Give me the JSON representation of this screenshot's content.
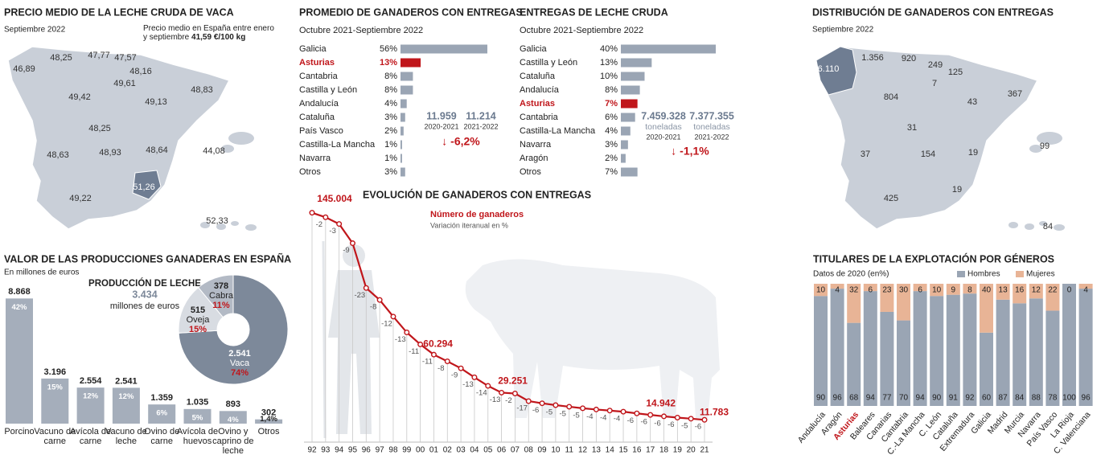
{
  "maps": [
    {
      "title": "PRECIO MEDIO DE LA LECHE CRUDA DE VACA",
      "subtitle": "Septiembre 2022",
      "note": "Precio medio en España entre enero y septiembre",
      "note_value": "41,59 €/100 kg",
      "labels": [
        "46,89",
        "48,25",
        "47,77",
        "47,57",
        "48,16",
        "49,61",
        "49,42",
        "49,13",
        "48,83",
        "48,25",
        "48,93",
        "48,63",
        "48,64",
        "44,08",
        "49,22",
        "51,26",
        "52,33"
      ]
    },
    {
      "title": "DISTRIBUCIÓN DE GANADEROS CON ENTREGAS",
      "subtitle": "Septiembre 2022",
      "labels": [
        "6.110",
        "1.356",
        "920",
        "249",
        "125",
        "7",
        "804",
        "43",
        "367",
        "31",
        "154",
        "19",
        "37",
        "19",
        "99",
        "425",
        "84"
      ]
    }
  ],
  "chart_data": [
    {
      "type": "hbar",
      "title": "PROMEDIO DE GANADEROS CON ENTREGAS",
      "subtitle": "Octubre 2021-Septiembre 2022",
      "categories": [
        "Galicia",
        "Asturias",
        "Cantabria",
        "Castilla y León",
        "Andalucía",
        "Cataluña",
        "País Vasco",
        "Castilla-La Mancha",
        "Navarra",
        "Otros"
      ],
      "values": [
        56,
        13,
        8,
        8,
        4,
        3,
        2,
        1,
        1,
        3
      ],
      "value_labels": [
        "56%",
        "13%",
        "8%",
        "8%",
        "4%",
        "3%",
        "2%",
        "1%",
        "1%",
        "3%"
      ],
      "color": "#9aa5b4",
      "highlight": "Asturias",
      "highlight_color": "#c0161b",
      "xlim": [
        0,
        56
      ],
      "comparison": {
        "items": [
          {
            "value": "11.959",
            "period": "2020-2021"
          },
          {
            "value": "11.214",
            "period": "2021-2022"
          }
        ],
        "change": "↓ -6,2%"
      }
    },
    {
      "type": "hbar",
      "title": "ENTREGAS DE LECHE CRUDA",
      "subtitle": "Octubre 2021-Septiembre 2022",
      "categories": [
        "Galicia",
        "Castilla y León",
        "Cataluña",
        "Andalucía",
        "Asturias",
        "Cantabria",
        "Castilla-La Mancha",
        "Navarra",
        "Aragón",
        "Otros"
      ],
      "values": [
        40,
        13,
        10,
        8,
        7,
        6,
        4,
        3,
        2,
        7
      ],
      "value_labels": [
        "40%",
        "13%",
        "10%",
        "8%",
        "7%",
        "6%",
        "4%",
        "3%",
        "2%",
        "7%"
      ],
      "color": "#9aa5b4",
      "highlight": "Asturias",
      "highlight_color": "#c0161b",
      "xlim": [
        0,
        40
      ],
      "comparison": {
        "items": [
          {
            "value": "7.459.328",
            "unit": "toneladas",
            "period": "2020-2021"
          },
          {
            "value": "7.377.355",
            "unit": "toneladas",
            "period": "2021-2022"
          }
        ],
        "change": "↓ -1,1%"
      }
    },
    {
      "type": "line",
      "title": "EVOLUCIÓN DE GANADEROS CON ENTREGAS",
      "change_label": "Variación iteranual en %",
      "categories": [
        "92",
        "93",
        "94",
        "95",
        "96",
        "97",
        "98",
        "99",
        "00",
        "01",
        "02",
        "03",
        "04",
        "05",
        "06",
        "07",
        "08",
        "09",
        "10",
        "11",
        "12",
        "13",
        "14",
        "15",
        "16",
        "17",
        "18",
        "19",
        "20",
        "21"
      ],
      "series": [
        {
          "name": "Número de ganaderos",
          "color": "#c0161b",
          "values": [
            145004,
            142100,
            137800,
            125400,
            96600,
            88900,
            78200,
            68000,
            60294,
            53700,
            49400,
            44900,
            39100,
            33600,
            29251,
            28700,
            23800,
            22400,
            21200,
            20200,
            19200,
            18400,
            17700,
            17000,
            15900,
            14942,
            14000,
            13200,
            12500,
            11783
          ],
          "value_labels": [
            "145.004",
            null,
            null,
            null,
            null,
            null,
            null,
            null,
            "60.294",
            null,
            null,
            null,
            null,
            null,
            "29.251",
            null,
            null,
            null,
            null,
            null,
            null,
            null,
            null,
            null,
            null,
            "14.942",
            null,
            null,
            null,
            "11.783"
          ]
        }
      ],
      "change_values": [
        null,
        -2,
        -3,
        -9,
        -23,
        -8,
        -12,
        -13,
        -11,
        -11,
        -8,
        -9,
        -13,
        -14,
        -13,
        -2,
        -17,
        -6,
        -5,
        -5,
        -5,
        -4,
        -4,
        -4,
        -6,
        -6,
        -6,
        -6,
        -5,
        -6
      ],
      "ylim": [
        0,
        150000
      ]
    },
    {
      "type": "bar",
      "title": "VALOR DE LAS PRODUCCIONES GANADERAS EN ESPAÑA",
      "subtitle": "En millones de euros",
      "categories": [
        "Porcino",
        "Vacuno de carne",
        "Avícola de carne",
        "Vacuno de leche",
        "Ovino de carne",
        "Avícola de huevos",
        "Ovino y caprino de leche",
        "Otros"
      ],
      "values": [
        8868,
        3196,
        2554,
        2541,
        1359,
        1035,
        893,
        302
      ],
      "value_labels": [
        "8.868",
        "3.196",
        "2.554",
        "2.541",
        "1.359",
        "1.035",
        "893",
        "302"
      ],
      "shares": [
        42,
        15,
        12,
        12,
        6,
        5,
        4,
        1.4
      ],
      "share_labels": [
        "42%",
        "15%",
        "12%",
        "12%",
        "6%",
        "5%",
        "4%",
        "1,4%"
      ],
      "color": "#a5aebb",
      "ylim": [
        0,
        9000
      ]
    },
    {
      "type": "donut",
      "title": "PRODUCCIÓN DE LECHE",
      "subtitle_value": "3.434",
      "subtitle": "millones de euros",
      "categories": [
        "Vaca",
        "Oveja",
        "Cabra"
      ],
      "values": [
        2541,
        515,
        378
      ],
      "value_labels": [
        "2.541",
        "515",
        "378"
      ],
      "shares": [
        74,
        15,
        11
      ],
      "share_labels": [
        "74%",
        "15%",
        "11%"
      ],
      "colors": [
        "#7d899a",
        "#d8dce2",
        "#b3bac5"
      ],
      "share_color": "#c0161b"
    },
    {
      "type": "stacked",
      "title": "TITULARES DE LA EXPLOTACIÓN POR GÉNEROS",
      "subtitle": "Datos de 2020 (en%)",
      "categories": [
        "Andalucía",
        "Aragón",
        "Asturias",
        "Baleares",
        "Canarias",
        "Cantabria",
        "C.-La Mancha",
        "C. León",
        "Cataluña",
        "Extremadura",
        "Galicia",
        "Madrid",
        "Murcia",
        "Navarra",
        "País Vasco",
        "La Rioja",
        "C. Valenciana"
      ],
      "series": [
        {
          "name": "Hombres",
          "color": "#9aa5b4",
          "values": [
            90,
            96,
            68,
            94,
            77,
            70,
            94,
            90,
            91,
            92,
            60,
            87,
            84,
            88,
            78,
            100,
            96
          ]
        },
        {
          "name": "Mujeres",
          "color": "#e8b496",
          "values": [
            10,
            4,
            32,
            6,
            23,
            30,
            6,
            10,
            9,
            8,
            40,
            13,
            16,
            12,
            22,
            0,
            4
          ]
        }
      ],
      "ylim": [
        0,
        100
      ],
      "highlight": "Asturias",
      "highlight_color": "#c0161b"
    }
  ]
}
